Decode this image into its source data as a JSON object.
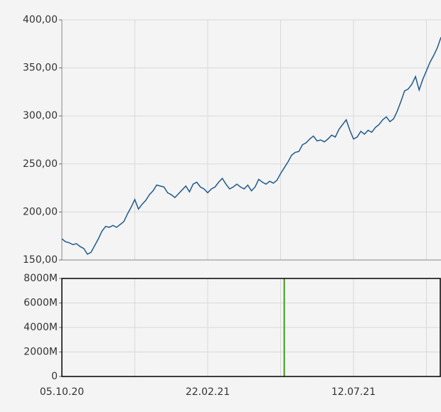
{
  "chart_data": [
    {
      "type": "line",
      "series": [
        {
          "color": "#1f5a8c",
          "values": [
            172,
            169,
            168,
            166,
            167,
            164,
            162,
            156,
            158,
            165,
            172,
            180,
            185,
            184,
            186,
            184,
            187,
            190,
            198,
            205,
            213,
            203,
            208,
            212,
            218,
            222,
            228,
            227,
            226,
            220,
            218,
            215,
            219,
            223,
            227,
            221,
            229,
            231,
            226,
            224,
            220,
            224,
            226,
            231,
            235,
            229,
            224,
            226,
            229,
            226,
            224,
            228,
            222,
            226,
            234,
            231,
            229,
            232,
            230,
            233,
            240,
            246,
            252,
            259,
            262,
            263,
            270,
            272,
            276,
            279,
            274,
            275,
            273,
            276,
            280,
            278,
            286,
            291,
            296,
            285,
            276,
            278,
            284,
            281,
            285,
            283,
            288,
            291,
            296,
            299,
            294,
            297,
            305,
            315,
            326,
            328,
            333,
            341,
            327,
            338,
            347,
            356,
            363,
            371,
            382
          ]
        }
      ],
      "ylim": [
        150,
        400
      ],
      "yticks": [
        {
          "value": 150,
          "label": "150,00"
        },
        {
          "value": 200,
          "label": "200,00"
        },
        {
          "value": 250,
          "label": "250,00"
        },
        {
          "value": 300,
          "label": "300,00"
        },
        {
          "value": 350,
          "label": "350,00"
        },
        {
          "value": 400,
          "label": "400,00"
        }
      ],
      "xgrid": [
        20,
        40,
        60,
        80,
        100
      ],
      "grid": true
    },
    {
      "type": "bar",
      "categories": [
        "05.10.20",
        null,
        null,
        null,
        null,
        null,
        null,
        null,
        null,
        null,
        null,
        null,
        null,
        null,
        null,
        null,
        null,
        null,
        null,
        null,
        null,
        null,
        null,
        null,
        null,
        null,
        null,
        null,
        null,
        null,
        null,
        null,
        null,
        null,
        null,
        null,
        null,
        null,
        null,
        null,
        "22.02.21",
        null,
        null,
        null,
        null,
        null,
        null,
        null,
        null,
        null,
        null,
        null,
        null,
        null,
        null,
        null,
        null,
        null,
        null,
        null,
        null,
        null,
        null,
        null,
        null,
        null,
        null,
        null,
        null,
        null,
        null,
        null,
        null,
        null,
        null,
        null,
        null,
        null,
        null,
        null,
        "12.07.21",
        null,
        null,
        null,
        null,
        null,
        null,
        null,
        null,
        null,
        null,
        null,
        null,
        null,
        null,
        null,
        null,
        null,
        null,
        null,
        null,
        null,
        null,
        null,
        null
      ],
      "series": [
        {
          "color": "#3a9a1a",
          "values": [
            30,
            25,
            28,
            30,
            26,
            30,
            32,
            35,
            28,
            30,
            26,
            30,
            28,
            25,
            27,
            30,
            26,
            28,
            30,
            32,
            35,
            30,
            28,
            26,
            30,
            28,
            25,
            26,
            28,
            30,
            27,
            26,
            28,
            25,
            30,
            28,
            26,
            27,
            29,
            25,
            28,
            26,
            30,
            28,
            27,
            25,
            26,
            28,
            30,
            27,
            26,
            25,
            28,
            27,
            26,
            28,
            30,
            27,
            26,
            25,
            28,
            8000,
            27,
            26,
            28,
            30,
            27,
            26,
            25,
            28,
            30,
            27,
            26,
            28,
            25,
            27,
            26,
            28,
            30,
            27,
            26,
            28,
            25,
            27,
            26,
            28,
            30,
            27,
            26,
            25,
            28,
            27,
            26,
            28,
            30,
            27,
            26,
            25,
            28,
            27,
            26,
            30,
            28,
            27,
            26
          ]
        }
      ],
      "ylim": [
        0,
        8000
      ],
      "yticks": [
        0,
        {
          "value": 2000,
          "label": "2000M"
        },
        {
          "value": 4000,
          "label": "4000M"
        },
        {
          "value": 6000,
          "label": "6000M"
        },
        {
          "value": 8000,
          "label": "8000M"
        }
      ],
      "xgrid": [
        20,
        40,
        60,
        80,
        100
      ],
      "grid": true
    }
  ]
}
